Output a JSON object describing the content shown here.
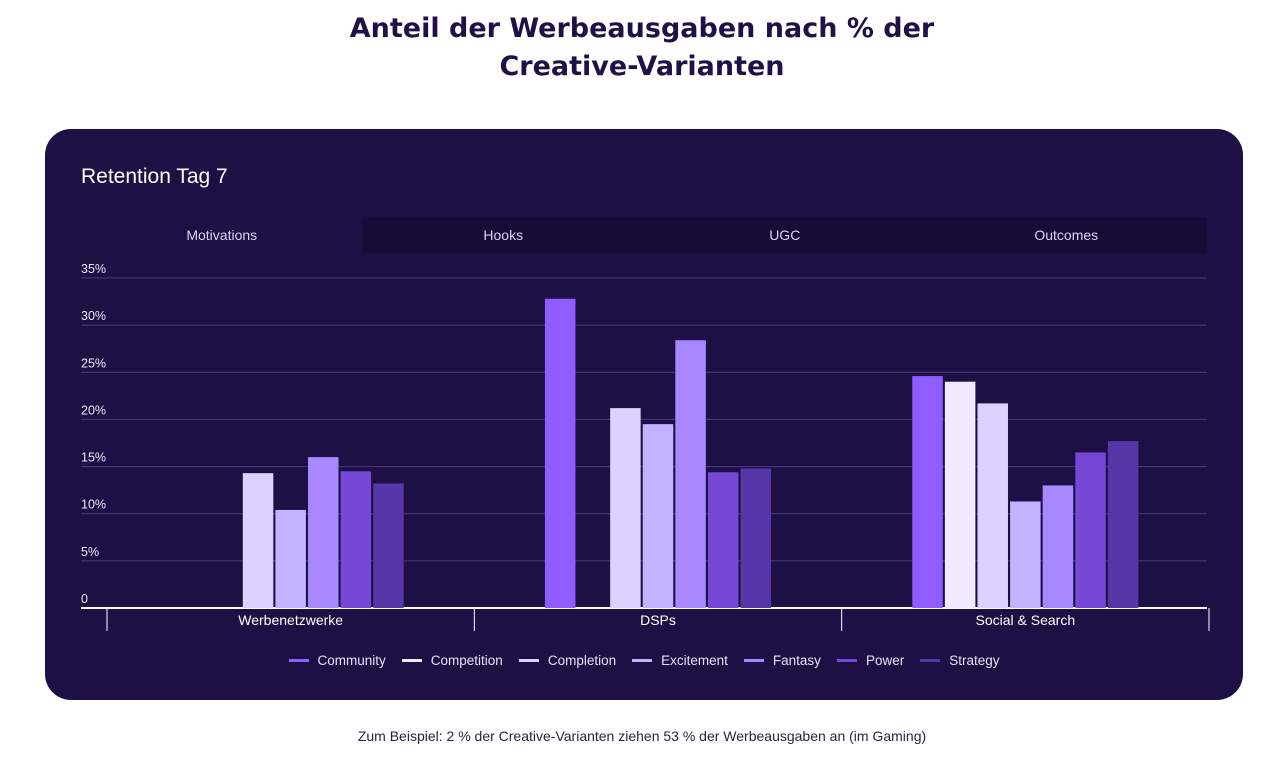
{
  "page": {
    "title_line1": "Anteil der Werbeausgaben nach % der",
    "title_line2": "Creative-Varianten",
    "caption": "Zum Beispiel: 2 % der Creative-Varianten ziehen 53 % der Werbeausgaben an (im Gaming)"
  },
  "card": {
    "title": "Retention Tag 7",
    "tabs": [
      {
        "label": "Motivations",
        "active": true
      },
      {
        "label": "Hooks",
        "active": false
      },
      {
        "label": "UGC",
        "active": false
      },
      {
        "label": "Outcomes",
        "active": false
      }
    ]
  },
  "chart_data": {
    "type": "bar",
    "title": "Retention Tag 7",
    "categories": [
      "Werbenetzwerke",
      "DSPs",
      "Social & Search"
    ],
    "ylim": [
      0,
      35
    ],
    "yticks": [
      "0",
      "5%",
      "10%",
      "15%",
      "20%",
      "25%",
      "30%",
      "35%"
    ],
    "ytick_values": [
      0,
      5,
      10,
      15,
      20,
      25,
      30,
      35
    ],
    "grid": true,
    "legend_position": "bottom-center",
    "series": [
      {
        "name": "Community",
        "color": "#8f5cff",
        "values": [
          null,
          32.8,
          24.6
        ]
      },
      {
        "name": "Competition",
        "color": "#f0ebff",
        "values": [
          null,
          null,
          24.0
        ]
      },
      {
        "name": "Completion",
        "color": "#ddd2ff",
        "values": [
          14.3,
          21.2,
          21.7
        ]
      },
      {
        "name": "Excitement",
        "color": "#c5b2ff",
        "values": [
          10.4,
          19.5,
          11.3
        ]
      },
      {
        "name": "Fantasy",
        "color": "#a888ff",
        "values": [
          16.0,
          28.4,
          13.0
        ]
      },
      {
        "name": "Power",
        "color": "#7548d6",
        "values": [
          14.5,
          14.4,
          16.5
        ]
      },
      {
        "name": "Strategy",
        "color": "#5737a8",
        "values": [
          13.2,
          14.8,
          17.7
        ]
      }
    ]
  }
}
